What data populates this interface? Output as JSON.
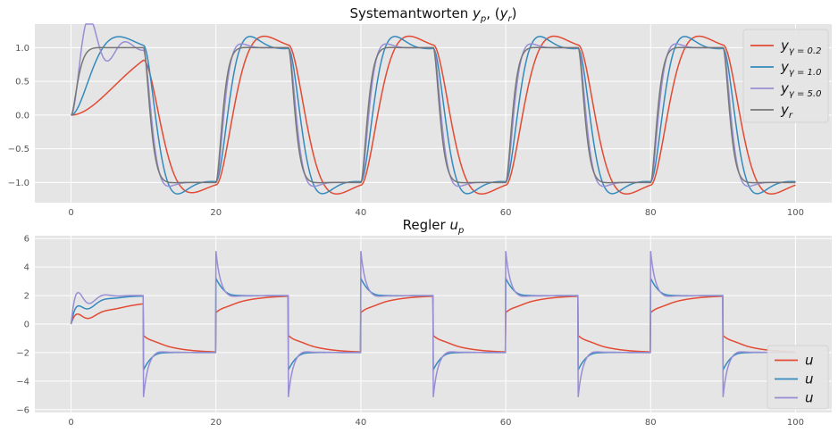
{
  "chart_data": [
    {
      "type": "line",
      "title": "Systemantworten y_p, (y_r)",
      "title_parts": {
        "text": "Systemantworten ",
        "a": "y",
        "a_sub": "p",
        "mid": ", (",
        "b": "y",
        "b_sub": "r",
        "end": ")"
      },
      "xlabel": "",
      "ylabel": "",
      "xlim": [
        -5,
        105
      ],
      "ylim": [
        -1.3,
        1.35
      ],
      "xticks": [
        0,
        20,
        40,
        60,
        80,
        100
      ],
      "yticks": [
        -1.0,
        -0.5,
        0.0,
        0.5,
        1.0
      ],
      "ytick_labels": [
        "−1.0",
        "−0.5",
        "0.0",
        "0.5",
        "1.0"
      ],
      "xtick_labels": [
        "0",
        "20",
        "40",
        "60",
        "80",
        "100"
      ],
      "grid": true,
      "legend_position": "top-right",
      "series": [
        {
          "name": "y_{γ=0.2}",
          "label_main": "y",
          "label_sub": "γ = 0.2",
          "color": "#e24a33",
          "model": {
            "kind": "second_order",
            "omega": 0.6,
            "zeta": 0.62,
            "first_omega": 0.2,
            "first_zeta": 0.55
          }
        },
        {
          "name": "y_{γ=1.0}",
          "label_main": "y",
          "label_sub": "γ = 1.0",
          "color": "#348abd",
          "model": {
            "kind": "second_order",
            "omega": 0.85,
            "zeta": 0.62,
            "first_omega": 0.55,
            "first_zeta": 0.5
          }
        },
        {
          "name": "y_{γ=5.0}",
          "label_main": "y",
          "label_sub": "γ = 5.0",
          "color": "#988ed5",
          "model": {
            "kind": "second_order",
            "omega": 1.35,
            "zeta": 0.75,
            "first_omega": 1.3,
            "first_zeta": 0.25
          }
        },
        {
          "name": "y_r",
          "label_main": "y",
          "label_sub": "r",
          "color": "#777777",
          "model": {
            "kind": "second_order",
            "omega": 1.7,
            "zeta": 0.9,
            "first_omega": 1.7,
            "first_zeta": 0.9
          }
        }
      ],
      "reference": {
        "period": 10,
        "start": 0,
        "end": 100,
        "first_level": 1
      }
    },
    {
      "type": "line",
      "title": "Regler u_p",
      "title_parts": {
        "text": "Regler ",
        "a": "u",
        "a_sub": "p"
      },
      "xlabel": "",
      "ylabel": "",
      "xlim": [
        -5,
        105
      ],
      "ylim": [
        -6.2,
        6.2
      ],
      "xticks": [
        0,
        20,
        40,
        60,
        80,
        100
      ],
      "yticks": [
        -6,
        -4,
        -2,
        0,
        2,
        4,
        6
      ],
      "ytick_labels": [
        "−6",
        "−4",
        "−2",
        "0",
        "2",
        "4",
        "6"
      ],
      "xtick_labels": [
        "0",
        "20",
        "40",
        "60",
        "80",
        "100"
      ],
      "grid": true,
      "legend_position": "bottom-right",
      "series": [
        {
          "name": "u",
          "label_main": "u",
          "label_sub": "",
          "color": "#e24a33",
          "model": {
            "spike": 0.2,
            "decay": 1.2,
            "tau": 3.0,
            "first_tau": 8.0,
            "overshoot": 0.15
          }
        },
        {
          "name": "u",
          "label_main": "u",
          "label_sub": "",
          "color": "#348abd",
          "model": {
            "spike": 1.5,
            "decay": 1.0,
            "tau": 2.0,
            "first_tau": 2.5,
            "overshoot": 0.2
          }
        },
        {
          "name": "u",
          "label_main": "u",
          "label_sub": "",
          "color": "#988ed5",
          "model": {
            "spike": 3.4,
            "decay": 0.6,
            "tau": 2.0,
            "first_tau": 1.2,
            "overshoot": 0.35
          }
        }
      ],
      "reference": {
        "period": 10,
        "start": 0,
        "end": 100,
        "first_level": 2
      }
    }
  ]
}
